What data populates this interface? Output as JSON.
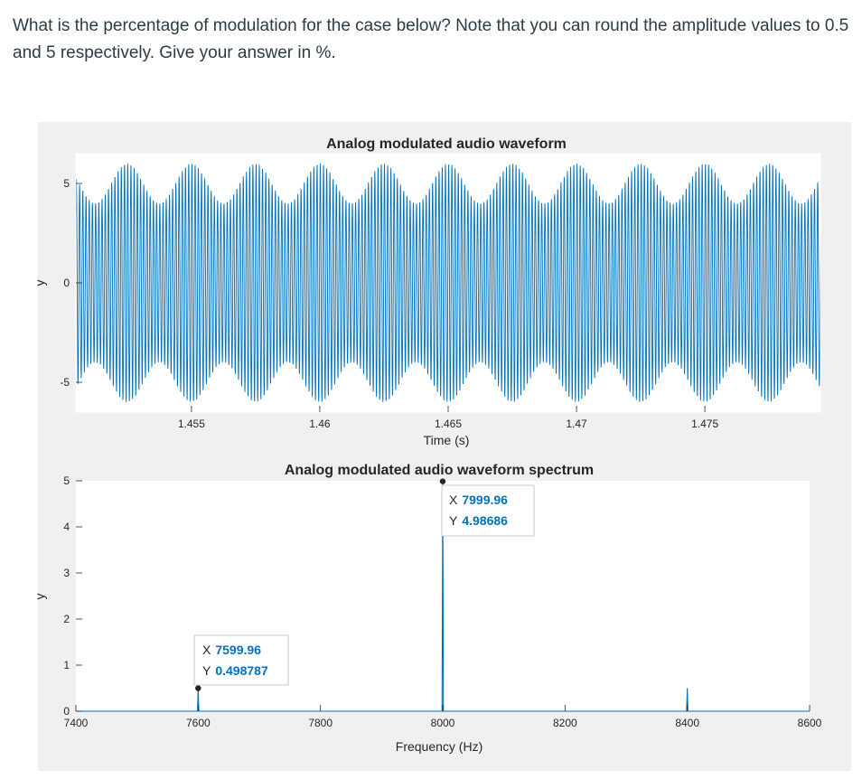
{
  "question": "What is the percentage of modulation for the case below? Note that you can round the amplitude values to 0.5 and 5 respectively. Give your answer in %.",
  "colors": {
    "line": "#0072bd",
    "axes_bg": "#ffffff",
    "figure_bg": "#f0f0f0",
    "tip_x": "#0072bd"
  },
  "chart_data": [
    {
      "type": "line",
      "title": "Analog modulated audio waveform",
      "xlabel": "Time (s)",
      "ylabel": "y",
      "xlim": [
        1.4505,
        1.4795
      ],
      "ylim": [
        -6.5,
        6.5
      ],
      "xticks": [
        1.455,
        1.46,
        1.465,
        1.47,
        1.475
      ],
      "xtick_labels": [
        "1.455",
        "1.46",
        "1.465",
        "1.47",
        "1.475"
      ],
      "yticks": [
        -5,
        0,
        5
      ],
      "ytick_labels": [
        "-5",
        "0",
        "5"
      ],
      "carrier_hz": 8000,
      "modulation_hz": 400,
      "carrier_amplitude": 5,
      "sideband_amplitude": 0.5,
      "grid": false
    },
    {
      "type": "line",
      "title": "Analog modulated audio waveform spectrum",
      "xlabel": "Frequency (Hz)",
      "ylabel": "y",
      "xlim": [
        7400,
        8600
      ],
      "ylim": [
        0,
        5
      ],
      "xticks": [
        7400,
        7600,
        7800,
        8000,
        8200,
        8400,
        8600
      ],
      "xtick_labels": [
        "7400",
        "7600",
        "7800",
        "8000",
        "8200",
        "8400",
        "8600"
      ],
      "yticks": [
        0,
        1,
        2,
        3,
        4,
        5
      ],
      "ytick_labels": [
        "0",
        "1",
        "2",
        "3",
        "4",
        "5"
      ],
      "peaks": [
        {
          "x": 7599.96,
          "y": 0.498787
        },
        {
          "x": 7999.96,
          "y": 4.98686
        },
        {
          "x": 8399.96,
          "y": 0.498787
        }
      ],
      "datatips": [
        {
          "x_label": "X",
          "x_value": "7599.96",
          "y_label": "Y",
          "y_value": "0.498787"
        },
        {
          "x_label": "X",
          "x_value": "7999.96",
          "y_label": "Y",
          "y_value": "4.98686"
        }
      ],
      "grid": false
    }
  ]
}
